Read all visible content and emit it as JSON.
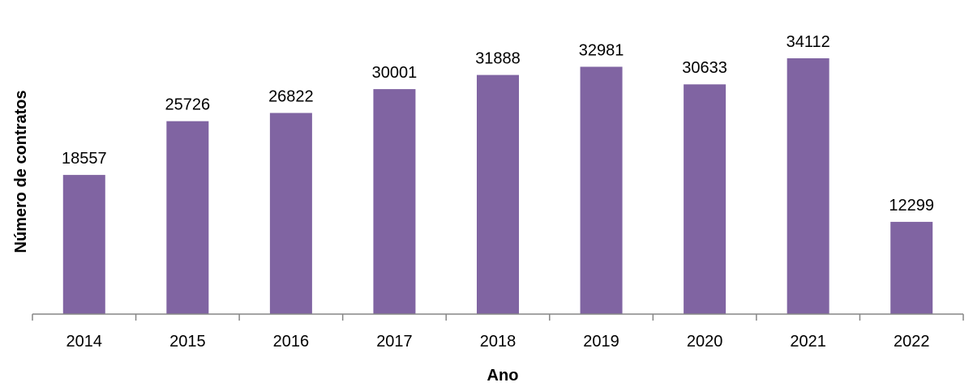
{
  "chart_data": {
    "type": "bar",
    "categories": [
      "2014",
      "2015",
      "2016",
      "2017",
      "2018",
      "2019",
      "2020",
      "2021",
      "2022"
    ],
    "values": [
      18557,
      25726,
      26822,
      30001,
      31888,
      32981,
      30633,
      34112,
      12299
    ],
    "xlabel": "Ano",
    "ylabel": "Número de  contratos",
    "ylim": [
      0,
      40000
    ],
    "grid": false,
    "data_labels": true,
    "bar_color": "#8064A2",
    "axis_color": "#868686"
  }
}
